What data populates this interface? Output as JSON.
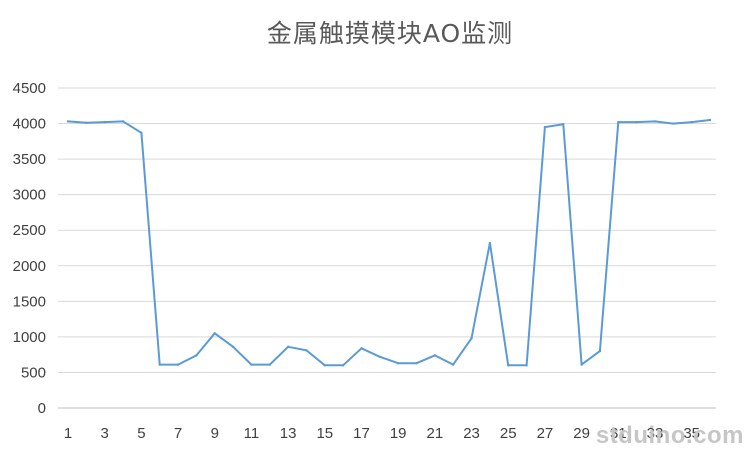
{
  "chart_data": {
    "type": "line",
    "title": "金属触摸模块AO监测",
    "xlabel": "",
    "ylabel": "",
    "ylim": [
      0,
      4500
    ],
    "yticks": [
      0,
      500,
      1000,
      1500,
      2000,
      2500,
      3000,
      3500,
      4000,
      4500
    ],
    "x": [
      1,
      2,
      3,
      4,
      5,
      6,
      7,
      8,
      9,
      10,
      11,
      12,
      13,
      14,
      15,
      16,
      17,
      18,
      19,
      20,
      21,
      22,
      23,
      24,
      25,
      26,
      27,
      28,
      29,
      30,
      31,
      32,
      33,
      34,
      35,
      36
    ],
    "xtick_labels": [
      1,
      3,
      5,
      7,
      9,
      11,
      13,
      15,
      17,
      19,
      21,
      23,
      25,
      27,
      29,
      31,
      33,
      35
    ],
    "series": [
      {
        "color": "#5b9bd5",
        "values": [
          4030,
          4010,
          4020,
          4030,
          3870,
          610,
          610,
          740,
          1050,
          860,
          610,
          610,
          860,
          810,
          600,
          600,
          840,
          720,
          630,
          630,
          740,
          610,
          980,
          2320,
          600,
          600,
          3950,
          3990,
          610,
          800,
          4020,
          4020,
          4030,
          4000,
          4020,
          4050
        ]
      }
    ],
    "grid": true,
    "legend": "none"
  },
  "watermark": "stduino.com"
}
